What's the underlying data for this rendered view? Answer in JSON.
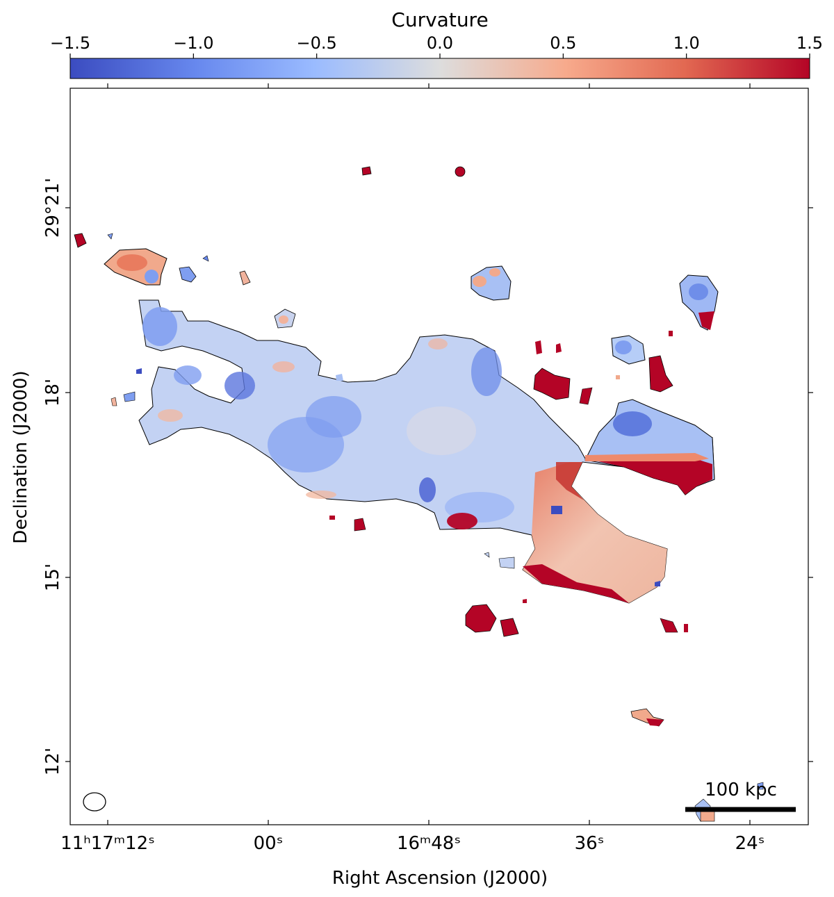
{
  "chart_data": {
    "type": "heatmap",
    "colorbar": {
      "label": "Curvature",
      "range": [
        -1.5,
        1.5
      ],
      "ticks": [
        {
          "value": -1.5,
          "label": "−1.5"
        },
        {
          "value": -1.0,
          "label": "−1.0"
        },
        {
          "value": -0.5,
          "label": "−0.5"
        },
        {
          "value": 0.0,
          "label": "0.0"
        },
        {
          "value": 0.5,
          "label": "0.5"
        },
        {
          "value": 1.0,
          "label": "1.0"
        },
        {
          "value": 1.5,
          "label": "1.5"
        }
      ],
      "colormap": "coolwarm",
      "colors": {
        "low": "#3b4cc0",
        "mid": "#dddddd",
        "high": "#b40426"
      }
    },
    "xlabel": "Right Ascension (J2000)",
    "ylabel": "Declination (J2000)",
    "x_ticks": [
      {
        "label": "11ʰ17ᵐ12ˢ"
      },
      {
        "label": "00ˢ"
      },
      {
        "label": "16ᵐ48ˢ"
      },
      {
        "label": "36ˢ"
      },
      {
        "label": "24ˢ"
      }
    ],
    "y_ticks": [
      {
        "label": "29°21'"
      },
      {
        "label": "18'"
      },
      {
        "label": "15'"
      },
      {
        "label": "12'"
      }
    ],
    "scale_bar": {
      "label": "100 kpc"
    },
    "beam": {
      "shape": "ellipse"
    }
  }
}
